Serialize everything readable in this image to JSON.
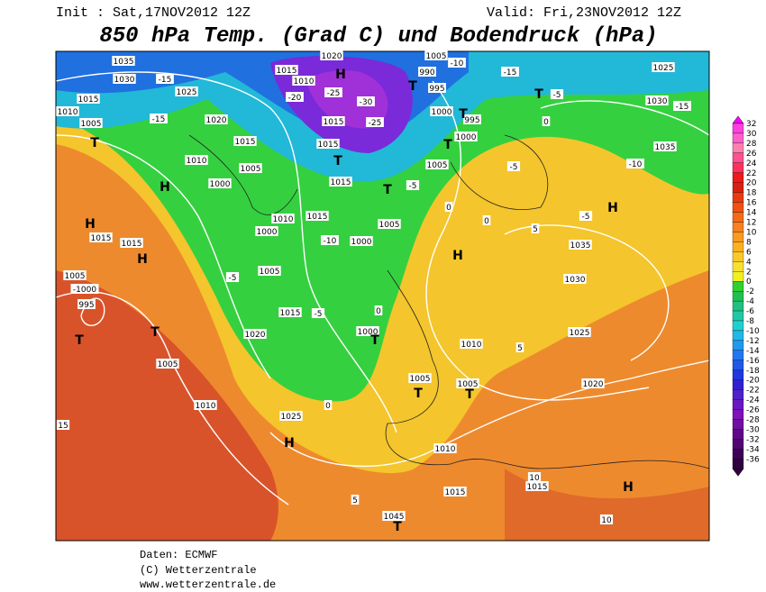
{
  "header": {
    "init": "Init : Sat,17NOV2012 12Z",
    "valid": "Valid: Fri,23NOV2012 12Z",
    "title": "850 hPa Temp. (Grad C) und Bodendruck (hPa)"
  },
  "colorbar": {
    "labels": [
      "32",
      "30",
      "28",
      "26",
      "24",
      "22",
      "20",
      "18",
      "16",
      "14",
      "12",
      "10",
      "8",
      "6",
      "4",
      "2",
      "0",
      "-2",
      "-4",
      "-6",
      "-8",
      "-10",
      "-12",
      "-14",
      "-16",
      "-18",
      "-20",
      "-22",
      "-24",
      "-26",
      "-28",
      "-30",
      "-32",
      "-34",
      "-36"
    ]
  },
  "map": {
    "labels": [
      "1035",
      "1030",
      "-15",
      "1025",
      "1015",
      "1010",
      "1005",
      "-15",
      "1020",
      "T",
      "H",
      "1000",
      "1005",
      "1015",
      "1010",
      "1010",
      "1000",
      "1005",
      "-5",
      "H",
      "1015",
      "1015",
      "H",
      "1005",
      "-1000",
      "995",
      "T",
      "T",
      "1005",
      "1010",
      "1020",
      "1015",
      "-5",
      "0",
      "1025",
      "H",
      "1015",
      "-10",
      "1000",
      "1005",
      "T",
      "-5",
      "1015",
      "T",
      "1015",
      "1015",
      "-25",
      "-30",
      "-25",
      "H",
      "1020",
      "1015",
      "1010",
      "-20",
      "990",
      "995",
      "1000",
      "T",
      "-10",
      "1005",
      "995",
      "T",
      "1000",
      "T",
      "1005",
      "-15",
      "T",
      "-5",
      "0",
      "1025",
      "1030",
      "-15",
      "1035",
      "-10",
      "-5",
      "H",
      "-5",
      "5",
      "1035",
      "1030",
      "0",
      "0",
      "H",
      "1025",
      "5",
      "1010",
      "1005",
      "T",
      "1005",
      "T",
      "1020",
      "1010",
      "1015",
      "1015",
      "10",
      "H",
      "10",
      "1045",
      "T",
      "5",
      "1000",
      "T",
      "0",
      "15"
    ]
  },
  "footer": {
    "source": "Daten: ECMWF",
    "copyright": "(C) Wetterzentrale",
    "url": "www.wetterzentrale.de"
  }
}
